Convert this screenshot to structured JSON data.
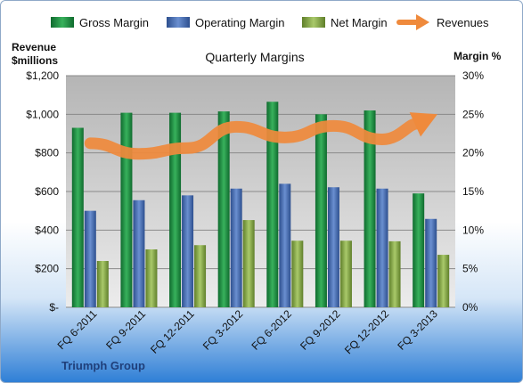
{
  "chart_data": {
    "type": "bar",
    "title": "Quarterly Margins",
    "categories": [
      "FQ 6-2011",
      "FQ 9-2011",
      "FQ 12-2011",
      "FQ 3-2012",
      "FQ 6-2012",
      "FQ 9-2012",
      "FQ 12-2012",
      "FQ 3-2013"
    ],
    "series": [
      {
        "name": "Gross Margin",
        "axis": "left",
        "color": "#2e9a4e",
        "values": [
          930,
          1008,
          1008,
          1015,
          1065,
          1000,
          1020,
          590
        ]
      },
      {
        "name": "Operating Margin",
        "axis": "left",
        "color": "#4a6fb5",
        "values": [
          500,
          555,
          580,
          615,
          640,
          622,
          615,
          458
        ]
      },
      {
        "name": "Net Margin",
        "axis": "left",
        "color": "#8fb24f",
        "values": [
          240,
          300,
          322,
          452,
          345,
          345,
          342,
          272
        ]
      },
      {
        "name": "Revenues",
        "axis": "left",
        "type": "trend-arrow",
        "color": "#ef8a3c",
        "values": [
          850,
          795,
          825,
          935,
          880,
          940,
          870,
          985
        ]
      }
    ],
    "y_left": {
      "label_line1": "Revenue",
      "label_line2": "$millions",
      "min": 0,
      "max": 1200,
      "step": 200,
      "ticks": [
        "$-",
        "$200",
        "$400",
        "$600",
        "$800",
        "$1,000",
        "$1,200"
      ]
    },
    "y_right": {
      "label": "Margin %",
      "min": 0,
      "max": 30,
      "step": 5,
      "ticks": [
        "0%",
        "5%",
        "10%",
        "15%",
        "20%",
        "25%",
        "30%"
      ]
    },
    "footer": "Triumph Group",
    "grid": true,
    "legend_position": "top"
  }
}
